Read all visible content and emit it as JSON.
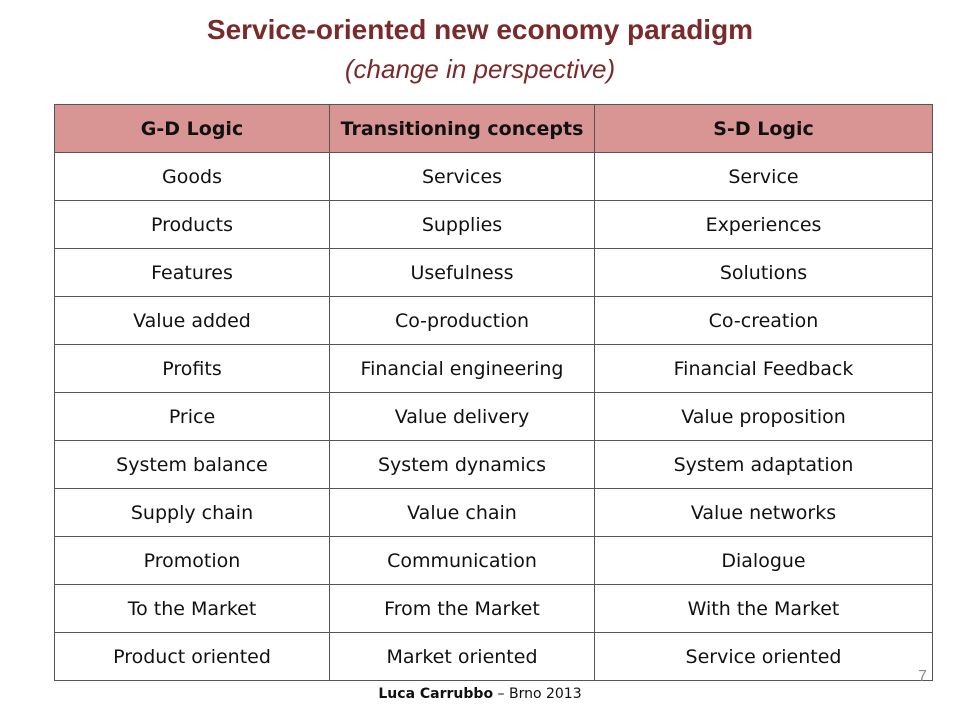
{
  "slide": {
    "title": "Service-oriented new economy paradigm",
    "subtitle": "(change in perspective)",
    "page_number": "7"
  },
  "table": {
    "headers": [
      "G-D Logic",
      "Transitioning concepts",
      "S-D Logic"
    ],
    "rows": [
      [
        "Goods",
        "Services",
        "Service"
      ],
      [
        "Products",
        "Supplies",
        "Experiences"
      ],
      [
        "Features",
        "Usefulness",
        "Solutions"
      ],
      [
        "Value added",
        "Co-production",
        "Co-creation"
      ],
      [
        "Profits",
        "Financial engineering",
        "Financial Feedback"
      ],
      [
        "Price",
        "Value delivery",
        "Value proposition"
      ],
      [
        "System balance",
        "System dynamics",
        "System adaptation"
      ],
      [
        "Supply chain",
        "Value chain",
        "Value networks"
      ],
      [
        "Promotion",
        "Communication",
        "Dialogue"
      ],
      [
        "To the Market",
        "From the Market",
        "With the Market"
      ],
      [
        "Product oriented",
        "Market oriented",
        "Service oriented"
      ]
    ]
  },
  "footer": {
    "author": "Luca Carrubbo",
    "separator": " – ",
    "place_year": "Brno 2013"
  },
  "colors": {
    "title": "#7a2a2a",
    "header_fill": "#d99594"
  }
}
